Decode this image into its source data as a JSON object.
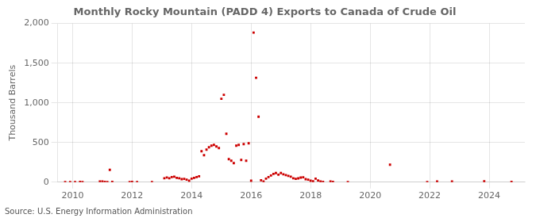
{
  "chart_data": {
    "type": "scatter",
    "title": "Monthly Rocky Mountain (PADD 4) Exports to Canada of Crude Oil",
    "ylabel": "Thousand Barrels",
    "source": "Source: U.S. Energy Information Administration",
    "color": "#cc0000",
    "marker": "square",
    "grid": true,
    "xlim": [
      2009.5,
      2025.2
    ],
    "xticks": [
      2010,
      2012,
      2014,
      2016,
      2018,
      2020,
      2022,
      2024
    ],
    "ylim": [
      0,
      2000
    ],
    "yticks": [
      0,
      500,
      {
        "value": 1000,
        "label": "1,000"
      },
      {
        "value": 1500,
        "label": "1,500"
      },
      {
        "value": 2000,
        "label": "2,000"
      }
    ],
    "x": [
      2009.75,
      2009.917,
      2010.083,
      2010.25,
      2010.333,
      2010.917,
      2011.0,
      2011.083,
      2011.167,
      2011.25,
      2011.333,
      2011.917,
      2012.0,
      2012.167,
      2012.667,
      2013.083,
      2013.167,
      2013.25,
      2013.333,
      2013.417,
      2013.5,
      2013.583,
      2013.667,
      2013.75,
      2013.833,
      2013.917,
      2014.0,
      2014.083,
      2014.167,
      2014.25,
      2014.333,
      2014.417,
      2014.5,
      2014.583,
      2014.667,
      2014.75,
      2014.833,
      2014.917,
      2015.0,
      2015.083,
      2015.167,
      2015.25,
      2015.333,
      2015.417,
      2015.5,
      2015.583,
      2015.667,
      2015.75,
      2015.833,
      2015.917,
      2016.0,
      2016.083,
      2016.167,
      2016.25,
      2016.333,
      2016.417,
      2016.5,
      2016.583,
      2016.667,
      2016.75,
      2016.833,
      2016.917,
      2017.0,
      2017.083,
      2017.167,
      2017.25,
      2017.333,
      2017.417,
      2017.5,
      2017.583,
      2017.667,
      2017.75,
      2017.833,
      2017.917,
      2018.0,
      2018.083,
      2018.167,
      2018.25,
      2018.333,
      2018.417,
      2018.667,
      2018.75,
      2019.25,
      2020.667,
      2021.917,
      2022.25,
      2022.75,
      2023.833,
      2024.75
    ],
    "values": [
      1,
      1,
      1,
      4,
      2,
      8,
      10,
      4,
      2,
      155,
      4,
      2,
      4,
      1,
      1,
      50,
      60,
      50,
      65,
      70,
      55,
      50,
      38,
      42,
      32,
      18,
      45,
      55,
      65,
      75,
      390,
      340,
      410,
      440,
      460,
      470,
      450,
      430,
      1050,
      1100,
      610,
      290,
      270,
      240,
      460,
      470,
      280,
      480,
      270,
      490,
      18,
      1885,
      1315,
      825,
      25,
      8,
      45,
      65,
      85,
      105,
      115,
      95,
      115,
      100,
      90,
      80,
      70,
      50,
      42,
      48,
      58,
      62,
      38,
      32,
      18,
      12,
      45,
      22,
      8,
      4,
      8,
      4,
      1,
      220,
      1,
      8,
      10,
      12,
      4
    ]
  }
}
